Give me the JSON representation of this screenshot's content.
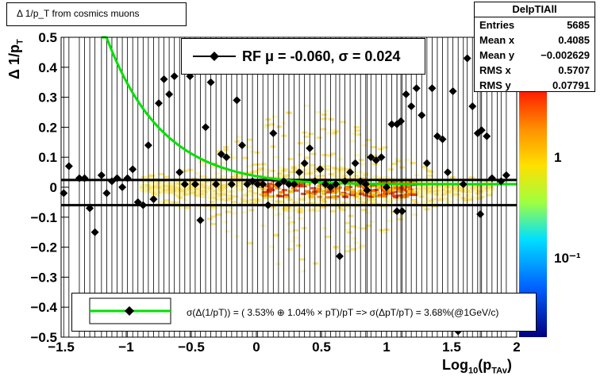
{
  "title": "Δ 1/p_T from cosmics muons",
  "stats": {
    "name": "DelpTIAll",
    "rows": [
      {
        "k": "Entries",
        "v": "5685"
      },
      {
        "k": "Mean x",
        "v": "0.4085"
      },
      {
        "k": "Mean y",
        "v": "−0.002629"
      },
      {
        "k": "RMS x",
        "v": "0.5707"
      },
      {
        "k": "RMS y",
        "v": "0.07791"
      }
    ]
  },
  "rf_legend": "RF μ = -0.060, σ =   0.024",
  "fit_legend": "σ(Δ(1/pT)) = ( 3.53% ⊕  1.04% × pT)/pT => σ(ΔpT/pT) =  3.68%(@1GeV/c)",
  "colors": {
    "fit_curve": "#00e000",
    "markers": "#000000"
  },
  "chart_data": {
    "type": "scatter",
    "xlabel": "Log10(pTAv)",
    "ylabel": "Δ 1/pT",
    "xlim": [
      -1.5,
      2
    ],
    "ylim": [
      -0.5,
      0.5
    ],
    "xticks": [
      "−1.5",
      "−1",
      "−0.5",
      "0",
      "0.5",
      "1",
      "1.5",
      "2"
    ],
    "yticks": [
      "−0.5",
      "−0.4",
      "−0.3",
      "−0.2",
      "−0.1",
      "0",
      "0.1",
      "0.2",
      "0.3",
      "0.4",
      "0.5"
    ],
    "colorbar_labels": [
      "1",
      "10⁻¹"
    ],
    "hlines": [
      0.024,
      -0.06
    ],
    "fit_model": "sqrt(a^2 + (b*pT)^2)/pT, pT=10^x",
    "fit_params": {
      "a": 0.0353,
      "b": 0.0104
    },
    "points": [
      {
        "x": -1.48,
        "y": -0.02
      },
      {
        "x": -1.44,
        "y": 0.07
      },
      {
        "x": -1.36,
        "y": 0.03
      },
      {
        "x": -1.32,
        "y": 0.03
      },
      {
        "x": -1.28,
        "y": -0.07
      },
      {
        "x": -1.24,
        "y": -0.15
      },
      {
        "x": -1.19,
        "y": 0.04
      },
      {
        "x": -1.15,
        "y": -0.02
      },
      {
        "x": -1.11,
        "y": 0.02
      },
      {
        "x": -1.07,
        "y": 0.03
      },
      {
        "x": -1.03,
        "y": 0.0
      },
      {
        "x": -0.99,
        "y": 0.03
      },
      {
        "x": -0.95,
        "y": 0.06
      },
      {
        "x": -0.91,
        "y": -0.05
      },
      {
        "x": -0.87,
        "y": -0.06
      },
      {
        "x": -0.83,
        "y": 0.14
      },
      {
        "x": -0.79,
        "y": -0.04
      },
      {
        "x": -0.75,
        "y": 0.28
      },
      {
        "x": -0.71,
        "y": 0.36
      },
      {
        "x": -0.67,
        "y": 0.31
      },
      {
        "x": -0.63,
        "y": 0.37
      },
      {
        "x": -0.59,
        "y": 0.05
      },
      {
        "x": -0.55,
        "y": 0.01
      },
      {
        "x": -0.51,
        "y": 0.37
      },
      {
        "x": -0.47,
        "y": 0.01
      },
      {
        "x": -0.43,
        "y": -0.11
      },
      {
        "x": -0.39,
        "y": 0.2
      },
      {
        "x": -0.35,
        "y": 0.35
      },
      {
        "x": -0.31,
        "y": 0.01
      },
      {
        "x": -0.27,
        "y": 0.11
      },
      {
        "x": -0.23,
        "y": 0.1
      },
      {
        "x": -0.19,
        "y": 0.01
      },
      {
        "x": -0.15,
        "y": 0.29
      },
      {
        "x": -0.11,
        "y": 0.14
      },
      {
        "x": -0.07,
        "y": 0.01
      },
      {
        "x": -0.03,
        "y": 0.02
      },
      {
        "x": 0.01,
        "y": 0.01
      },
      {
        "x": 0.05,
        "y": 0.01
      },
      {
        "x": 0.09,
        "y": -0.06
      },
      {
        "x": 0.13,
        "y": 0.18
      },
      {
        "x": 0.17,
        "y": 0.01
      },
      {
        "x": 0.21,
        "y": 0.02
      },
      {
        "x": 0.25,
        "y": 0.01
      },
      {
        "x": 0.29,
        "y": 0.01
      },
      {
        "x": 0.33,
        "y": 0.05
      },
      {
        "x": 0.37,
        "y": 0.08
      },
      {
        "x": 0.41,
        "y": 0.13
      },
      {
        "x": 0.45,
        "y": 0.02
      },
      {
        "x": 0.49,
        "y": 0.06
      },
      {
        "x": 0.53,
        "y": 0.01
      },
      {
        "x": 0.57,
        "y": 0.0
      },
      {
        "x": 0.61,
        "y": 0.01
      },
      {
        "x": 0.64,
        "y": -0.23
      },
      {
        "x": 0.68,
        "y": 0.02
      },
      {
        "x": 0.72,
        "y": 0.05
      },
      {
        "x": 0.76,
        "y": 0.08
      },
      {
        "x": 0.8,
        "y": 0.02
      },
      {
        "x": 0.84,
        "y": 0.01
      },
      {
        "x": 0.88,
        "y": 0.1
      },
      {
        "x": 0.92,
        "y": 0.09
      },
      {
        "x": 0.96,
        "y": 0.1
      },
      {
        "x": 1.0,
        "y": 0.0
      },
      {
        "x": 1.04,
        "y": 0.21
      },
      {
        "x": 1.08,
        "y": 0.21
      },
      {
        "x": 1.11,
        "y": 0.22
      },
      {
        "x": 1.15,
        "y": 0.31
      },
      {
        "x": 1.19,
        "y": 0.27
      },
      {
        "x": 1.23,
        "y": 0.33
      },
      {
        "x": 1.27,
        "y": 0.24
      },
      {
        "x": 1.31,
        "y": 0.08
      },
      {
        "x": 1.35,
        "y": 0.33
      },
      {
        "x": 1.39,
        "y": 0.17
      },
      {
        "x": 1.43,
        "y": 0.16
      },
      {
        "x": 1.47,
        "y": 0.05
      },
      {
        "x": 1.51,
        "y": 0.32
      },
      {
        "x": 1.55,
        "y": -0.48
      },
      {
        "x": 1.59,
        "y": 0.01
      },
      {
        "x": 1.62,
        "y": 0.43
      },
      {
        "x": 1.66,
        "y": 0.27
      },
      {
        "x": 1.7,
        "y": 0.18
      },
      {
        "x": 1.73,
        "y": 0.19
      },
      {
        "x": 1.77,
        "y": 0.17
      },
      {
        "x": 1.81,
        "y": 0.03
      },
      {
        "x": 1.85,
        "y": 0.33
      },
      {
        "x": 1.88,
        "y": 0.02
      },
      {
        "x": 1.92,
        "y": 0.04
      },
      {
        "x": 1.12,
        "y": -0.08
      },
      {
        "x": 1.08,
        "y": -0.08
      },
      {
        "x": 0.85,
        "y": -0.01
      },
      {
        "x": 1.72,
        "y": -0.09
      }
    ]
  }
}
